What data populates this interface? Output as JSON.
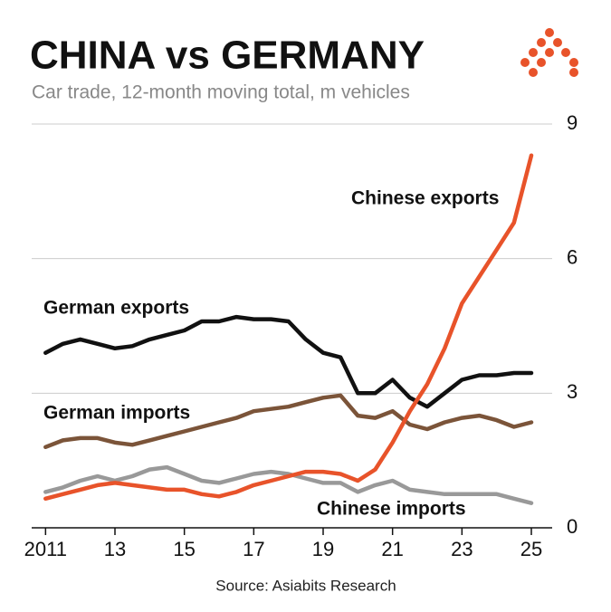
{
  "chart_data": {
    "type": "line",
    "title": "CHINA vs GERMANY",
    "subtitle": "Car trade, 12-month moving total, m vehicles",
    "source": "Source: Asiabits Research",
    "x": [
      2011,
      2011.5,
      2012,
      2012.5,
      2013,
      2013.5,
      2014,
      2014.5,
      2015,
      2015.5,
      2016,
      2016.5,
      2017,
      2017.5,
      2018,
      2018.5,
      2019,
      2019.5,
      2020,
      2020.5,
      2021,
      2021.5,
      2022,
      2022.5,
      2023,
      2023.5,
      2024,
      2024.5,
      2025
    ],
    "series": [
      {
        "name": "Chinese exports",
        "color": "#e8532a",
        "values": [
          0.65,
          0.75,
          0.85,
          0.95,
          1.0,
          0.95,
          0.9,
          0.85,
          0.85,
          0.75,
          0.7,
          0.8,
          0.95,
          1.05,
          1.15,
          1.25,
          1.25,
          1.2,
          1.05,
          1.3,
          1.9,
          2.6,
          3.2,
          4.0,
          5.0,
          5.6,
          6.2,
          6.8,
          8.3
        ]
      },
      {
        "name": "German exports",
        "color": "#111111",
        "values": [
          3.9,
          4.1,
          4.2,
          4.1,
          4.0,
          4.05,
          4.2,
          4.3,
          4.4,
          4.6,
          4.6,
          4.7,
          4.65,
          4.65,
          4.6,
          4.2,
          3.9,
          3.8,
          3.0,
          3.0,
          3.3,
          2.9,
          2.7,
          3.0,
          3.3,
          3.4,
          3.4,
          3.45,
          3.45
        ]
      },
      {
        "name": "German imports",
        "color": "#7b5439",
        "values": [
          1.8,
          1.95,
          2.0,
          2.0,
          1.9,
          1.85,
          1.95,
          2.05,
          2.15,
          2.25,
          2.35,
          2.45,
          2.6,
          2.65,
          2.7,
          2.8,
          2.9,
          2.95,
          2.5,
          2.45,
          2.6,
          2.3,
          2.2,
          2.35,
          2.45,
          2.5,
          2.4,
          2.25,
          2.35
        ]
      },
      {
        "name": "Chinese imports",
        "color": "#999999",
        "values": [
          0.8,
          0.9,
          1.05,
          1.15,
          1.05,
          1.15,
          1.3,
          1.35,
          1.2,
          1.05,
          1.0,
          1.1,
          1.2,
          1.25,
          1.2,
          1.1,
          1.0,
          1.0,
          0.8,
          0.95,
          1.05,
          0.85,
          0.8,
          0.75,
          0.75,
          0.75,
          0.75,
          0.65,
          0.55
        ]
      }
    ],
    "xlim": [
      2010.6,
      2025.6
    ],
    "xticks": [
      2011,
      {
        "value": 2013,
        "label": "13"
      },
      {
        "value": 2015,
        "label": "15"
      },
      {
        "value": 2017,
        "label": "17"
      },
      {
        "value": 2019,
        "label": "19"
      },
      {
        "value": 2021,
        "label": "21"
      },
      {
        "value": 2023,
        "label": "23"
      },
      {
        "value": 2025,
        "label": "25"
      }
    ],
    "ylim": [
      0,
      9
    ],
    "yticks": [
      0,
      3,
      6,
      9
    ],
    "grid": true
  }
}
